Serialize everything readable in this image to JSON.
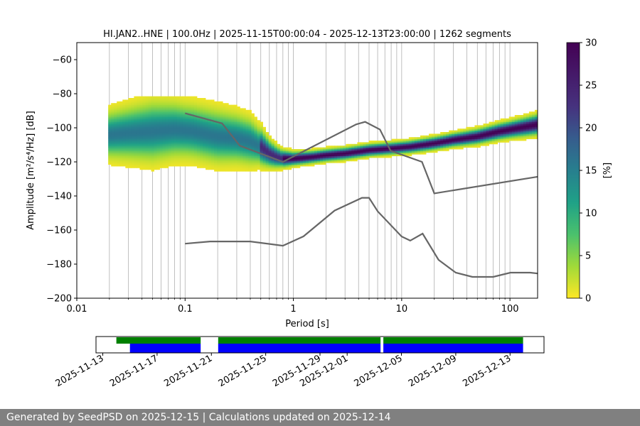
{
  "chart_data": [
    {
      "type": "heatmap",
      "title": "HI.JAN2..HNE | 100.0Hz | 2025-11-15T00:00:04 - 2025-12-13T23:00:00 | 1262 segments",
      "xlabel": "Period [s]",
      "ylabel": "Amplitude [m²/s⁴/Hz] [dB]",
      "x_scale": "log",
      "xlim": [
        0.01,
        180
      ],
      "ylim": [
        -200,
        -50
      ],
      "x_ticks": [
        0.01,
        0.1,
        1,
        10,
        100
      ],
      "x_tick_labels": [
        "0.01",
        "0.1",
        "1",
        "10",
        "100"
      ],
      "y_ticks": [
        -200,
        -180,
        -160,
        -140,
        -120,
        -100,
        -80,
        -60
      ],
      "y_tick_labels": [
        "−200",
        "−180",
        "−160",
        "−140",
        "−120",
        "−100",
        "−80",
        "−60"
      ],
      "grid": true,
      "colorbar": {
        "label": "[%]",
        "range": [
          0,
          30
        ],
        "ticks": [
          0,
          5,
          10,
          15,
          20,
          25,
          30
        ],
        "tick_labels": [
          "0",
          "5",
          "10",
          "15",
          "20",
          "25",
          "30"
        ],
        "colormap": "viridis_r"
      },
      "mode_curve": {
        "period": [
          0.02,
          0.03,
          0.05,
          0.08,
          0.12,
          0.2,
          0.3,
          0.4,
          0.5,
          0.6,
          0.7,
          0.8,
          1.0,
          1.5,
          2,
          3,
          5,
          8,
          12,
          20,
          30,
          50,
          80,
          120,
          180
        ],
        "amplitude_db": [
          -104,
          -103,
          -102,
          -101,
          -102,
          -105,
          -106,
          -108,
          -111,
          -115,
          -117,
          -118,
          -118,
          -117,
          -116,
          -115,
          -113,
          -112,
          -111,
          -109,
          -107,
          -105,
          -102,
          -100,
          -98
        ]
      },
      "percent_peak": 30,
      "noise_models": [
        {
          "name": "NHNM",
          "period": [
            0.1,
            0.22,
            0.32,
            0.8,
            3.8,
            4.6,
            6.3,
            7.9,
            15.4,
            20,
            180
          ],
          "amplitude_db": [
            -91.5,
            -97.4,
            -110.5,
            -120.0,
            -98.0,
            -96.5,
            -101.0,
            -113.5,
            -120.0,
            -138.5,
            -128.7
          ]
        },
        {
          "name": "NLNM",
          "period": [
            0.1,
            0.17,
            0.4,
            0.8,
            1.24,
            2.4,
            4.3,
            5.0,
            6.0,
            10.0,
            12.0,
            15.6,
            21.9,
            31.6,
            45.0,
            70.0,
            101.0,
            154.0,
            180.0
          ],
          "amplitude_db": [
            -168.0,
            -166.7,
            -166.7,
            -169.2,
            -163.7,
            -148.6,
            -141.1,
            -141.1,
            -149.0,
            -163.8,
            -166.2,
            -162.1,
            -177.5,
            -185.0,
            -187.5,
            -187.5,
            -185.0,
            -185.0,
            -185.5
          ]
        }
      ]
    },
    {
      "type": "timeline",
      "x_tick_labels": [
        "2025-11-13",
        "2025-11-17",
        "2025-11-21",
        "2025-11-25",
        "2025-11-29",
        "2025-12-01",
        "2025-12-05",
        "2025-12-09",
        "2025-12-13"
      ],
      "data_colors": {
        "data_available": "#008000",
        "psd_used": "#0000ff"
      },
      "data_available": [
        [
          "2025-11-14T00:00",
          "2025-11-20T05:00"
        ],
        [
          "2025-11-21T12:00",
          "2025-12-03T11:00"
        ],
        [
          "2025-12-03T16:00",
          "2025-12-13T23:00"
        ]
      ],
      "psd_used": [
        [
          "2025-11-15T00:00",
          "2025-11-20T05:00"
        ],
        [
          "2025-11-21T12:00",
          "2025-12-03T11:00"
        ],
        [
          "2025-12-03T16:00",
          "2025-12-13T23:00"
        ]
      ]
    }
  ],
  "footer": {
    "text": "Generated by SeedPSD on 2025-12-15 | Calculations updated on 2025-12-14"
  }
}
